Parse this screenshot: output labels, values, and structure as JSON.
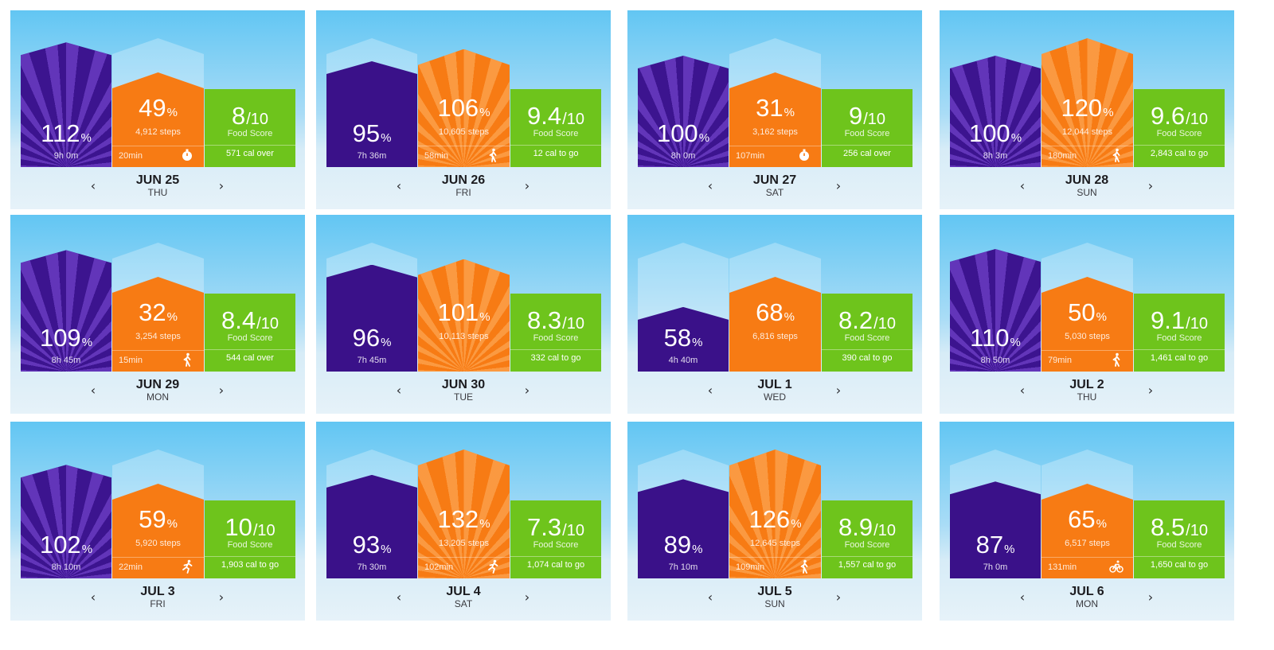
{
  "labels": {
    "food_score": "Food Score",
    "pct_unit": "%",
    "food_unit": "/10",
    "prev_arrow": "‹",
    "next_arrow": "›"
  },
  "colors": {
    "sleep": "#3c148f",
    "move": "#f77b14",
    "food": "#6ec41c",
    "sky_top": "#62c6f3",
    "sky_bottom": "#e6f2f9"
  },
  "cards": [
    {
      "date": "JUN 25",
      "dow": "THU",
      "sleep": {
        "pct": "112",
        "duration": "9h 0m",
        "fill": 1.12,
        "rays": true
      },
      "move": {
        "pct": "49",
        "steps": "4,912 steps",
        "active": "20min",
        "icon": "stopwatch-icon",
        "fill": 0.49
      },
      "food": {
        "score": "8",
        "cal": "571 cal over"
      }
    },
    {
      "date": "JUN 26",
      "dow": "FRI",
      "sleep": {
        "pct": "95",
        "duration": "7h 36m",
        "fill": 0.95,
        "rays": false
      },
      "move": {
        "pct": "106",
        "steps": "10,605 steps",
        "active": "58min",
        "icon": "walking-icon",
        "fill": 1.06
      },
      "food": {
        "score": "9.4",
        "cal": "12 cal to go"
      }
    },
    {
      "date": "JUN 27",
      "dow": "SAT",
      "sleep": {
        "pct": "100",
        "duration": "8h 0m",
        "fill": 1.0,
        "rays": true
      },
      "move": {
        "pct": "31",
        "steps": "3,162 steps",
        "active": "107min",
        "icon": "stopwatch-icon",
        "fill": 0.31
      },
      "food": {
        "score": "9",
        "cal": "256 cal over"
      }
    },
    {
      "date": "JUN 28",
      "dow": "SUN",
      "sleep": {
        "pct": "100",
        "duration": "8h 3m",
        "fill": 1.0,
        "rays": true
      },
      "move": {
        "pct": "120",
        "steps": "12,044 steps",
        "active": "180min",
        "icon": "walking-icon",
        "fill": 1.2
      },
      "food": {
        "score": "9.6",
        "cal": "2,843 cal to go"
      }
    },
    {
      "date": "JUN 29",
      "dow": "MON",
      "sleep": {
        "pct": "109",
        "duration": "8h 45m",
        "fill": 1.09,
        "rays": true
      },
      "move": {
        "pct": "32",
        "steps": "3,254 steps",
        "active": "15min",
        "icon": "walking-icon",
        "fill": 0.32
      },
      "food": {
        "score": "8.4",
        "cal": "544 cal over"
      }
    },
    {
      "date": "JUN 30",
      "dow": "TUE",
      "sleep": {
        "pct": "96",
        "duration": "7h 45m",
        "fill": 0.96,
        "rays": false
      },
      "move": {
        "pct": "101",
        "steps": "10,113 steps",
        "active": "",
        "icon": "",
        "fill": 1.01
      },
      "food": {
        "score": "8.3",
        "cal": "332 cal to go"
      }
    },
    {
      "date": "JUL 1",
      "dow": "WED",
      "sleep": {
        "pct": "58",
        "duration": "4h 40m",
        "fill": 0.58,
        "rays": false
      },
      "move": {
        "pct": "68",
        "steps": "6,816 steps",
        "active": "",
        "icon": "",
        "fill": 0.68
      },
      "food": {
        "score": "8.2",
        "cal": "390 cal to go"
      }
    },
    {
      "date": "JUL 2",
      "dow": "THU",
      "sleep": {
        "pct": "110",
        "duration": "8h 50m",
        "fill": 1.1,
        "rays": true
      },
      "move": {
        "pct": "50",
        "steps": "5,030 steps",
        "active": "79min",
        "icon": "walking-icon",
        "fill": 0.5
      },
      "food": {
        "score": "9.1",
        "cal": "1,461 cal to go"
      }
    },
    {
      "date": "JUL 3",
      "dow": "FRI",
      "sleep": {
        "pct": "102",
        "duration": "8h 10m",
        "fill": 1.02,
        "rays": true
      },
      "move": {
        "pct": "59",
        "steps": "5,920 steps",
        "active": "22min",
        "icon": "running-icon",
        "fill": 0.59
      },
      "food": {
        "score": "10",
        "cal": "1,903 cal to go"
      }
    },
    {
      "date": "JUL 4",
      "dow": "SAT",
      "sleep": {
        "pct": "93",
        "duration": "7h 30m",
        "fill": 0.93,
        "rays": false
      },
      "move": {
        "pct": "132",
        "steps": "13,205 steps",
        "active": "102min",
        "icon": "running-icon",
        "fill": 1.32
      },
      "food": {
        "score": "7.3",
        "cal": "1,074 cal to go"
      }
    },
    {
      "date": "JUL 5",
      "dow": "SUN",
      "sleep": {
        "pct": "89",
        "duration": "7h 10m",
        "fill": 0.89,
        "rays": false
      },
      "move": {
        "pct": "126",
        "steps": "12,645 steps",
        "active": "109min",
        "icon": "walking-icon",
        "fill": 1.26
      },
      "food": {
        "score": "8.9",
        "cal": "1,557 cal to go"
      }
    },
    {
      "date": "JUL 6",
      "dow": "MON",
      "sleep": {
        "pct": "87",
        "duration": "7h 0m",
        "fill": 0.87,
        "rays": false
      },
      "move": {
        "pct": "65",
        "steps": "6,517 steps",
        "active": "131min",
        "icon": "cycling-icon",
        "fill": 0.65
      },
      "food": {
        "score": "8.5",
        "cal": "1,650 cal to go"
      }
    }
  ]
}
